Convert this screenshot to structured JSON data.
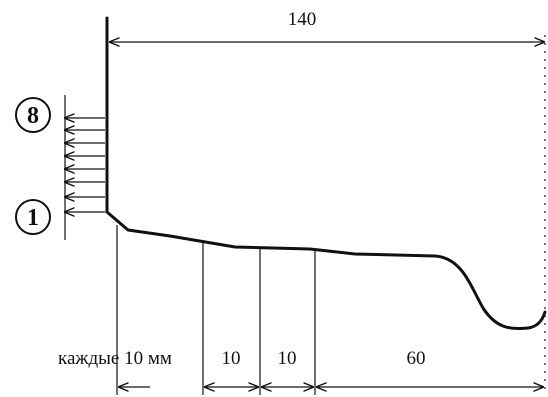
{
  "dimensions": {
    "total_length": "140",
    "every_label": "каждые 10 мм",
    "seg_a": "10",
    "seg_b": "10",
    "seg_c": "60"
  },
  "markers": {
    "top": "8",
    "bottom": "1"
  }
}
